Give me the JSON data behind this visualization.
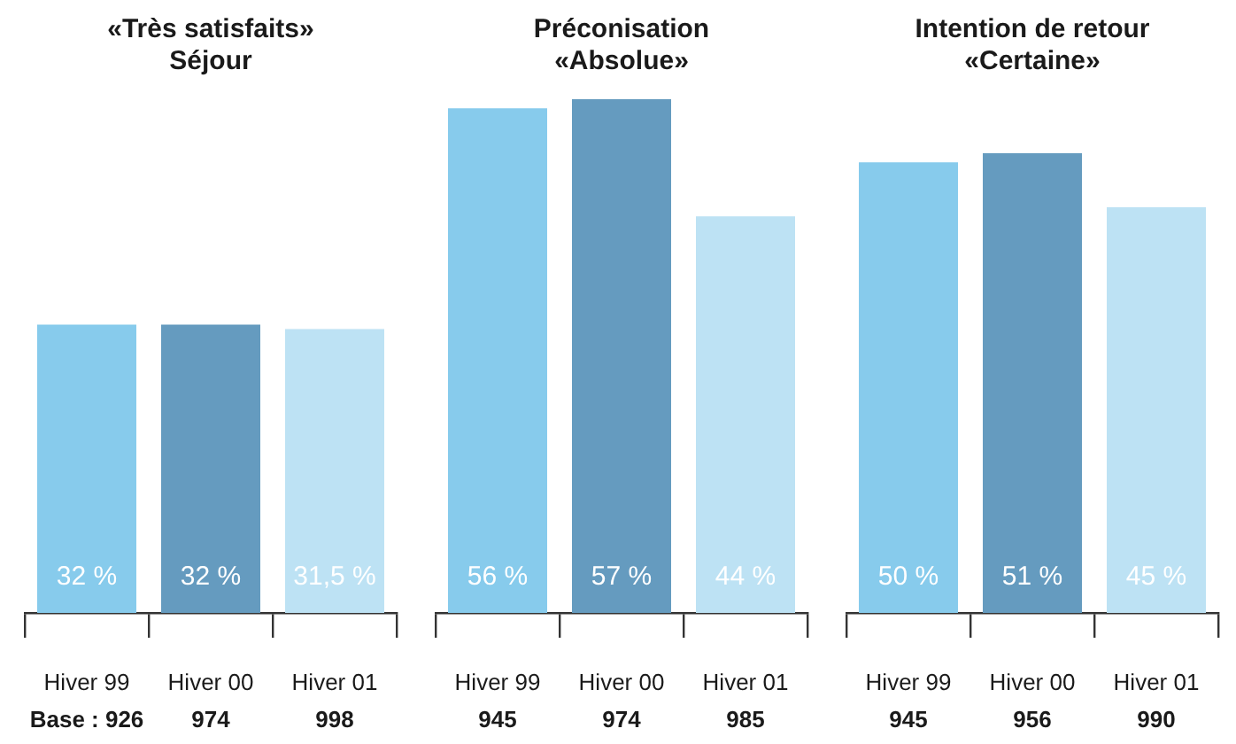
{
  "chart_data": [
    {
      "type": "bar",
      "title": "«Très satisfaits»\nSéjour",
      "categories": [
        "Hiver 99\nBase : 926",
        "Hiver 00\n974",
        "Hiver 01\n998"
      ],
      "values": [
        32,
        32,
        31.5
      ],
      "value_labels": [
        "32 %",
        "32 %",
        "31,5 %"
      ],
      "colors": [
        "#87cbec",
        "#659bbf",
        "#bde2f4"
      ]
    },
    {
      "type": "bar",
      "title": "Préconisation\n«Absolue»",
      "categories": [
        "Hiver 99\n945",
        "Hiver 00\n974",
        "Hiver 01\n985"
      ],
      "values": [
        56,
        57,
        44
      ],
      "value_labels": [
        "56 %",
        "57 %",
        "44 %"
      ],
      "colors": [
        "#87cbec",
        "#659bbf",
        "#bde2f4"
      ]
    },
    {
      "type": "bar",
      "title": "Intention de retour\n«Certaine»",
      "categories": [
        "Hiver 99\n945",
        "Hiver 00\n956",
        "Hiver 01\n990"
      ],
      "values": [
        50,
        51,
        45
      ],
      "value_labels": [
        "50 %",
        "51 %",
        "45 %"
      ],
      "colors": [
        "#87cbec",
        "#659bbf",
        "#bde2f4"
      ]
    }
  ]
}
